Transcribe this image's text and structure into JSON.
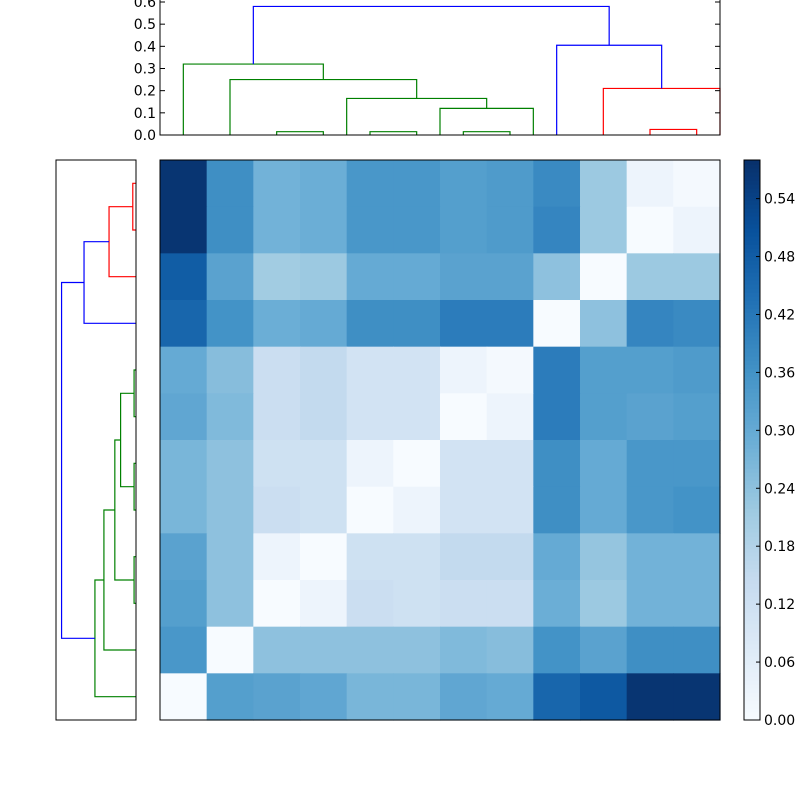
{
  "chart_data": {
    "type": "heatmap",
    "title": "",
    "xlabel": "",
    "ylabel": "",
    "colormap": "Blues",
    "matrix": [
      [
        0.57,
        0.37,
        0.28,
        0.29,
        0.35,
        0.35,
        0.33,
        0.34,
        0.38,
        0.22,
        0.03,
        0.01
      ],
      [
        0.57,
        0.37,
        0.28,
        0.29,
        0.35,
        0.35,
        0.33,
        0.34,
        0.39,
        0.22,
        0.0,
        0.03
      ],
      [
        0.48,
        0.32,
        0.21,
        0.22,
        0.3,
        0.3,
        0.32,
        0.32,
        0.24,
        0.0,
        0.22,
        0.22
      ],
      [
        0.46,
        0.36,
        0.29,
        0.3,
        0.37,
        0.37,
        0.41,
        0.41,
        0.0,
        0.24,
        0.39,
        0.38
      ],
      [
        0.3,
        0.25,
        0.13,
        0.15,
        0.11,
        0.11,
        0.03,
        0.01,
        0.41,
        0.33,
        0.33,
        0.34
      ],
      [
        0.31,
        0.26,
        0.13,
        0.15,
        0.11,
        0.11,
        0.0,
        0.03,
        0.41,
        0.33,
        0.32,
        0.33
      ],
      [
        0.27,
        0.24,
        0.12,
        0.12,
        0.03,
        0.0,
        0.11,
        0.11,
        0.37,
        0.3,
        0.35,
        0.35
      ],
      [
        0.27,
        0.24,
        0.13,
        0.12,
        0.0,
        0.03,
        0.11,
        0.11,
        0.37,
        0.3,
        0.35,
        0.36
      ],
      [
        0.32,
        0.24,
        0.03,
        0.0,
        0.12,
        0.12,
        0.15,
        0.15,
        0.3,
        0.23,
        0.28,
        0.28
      ],
      [
        0.33,
        0.24,
        0.0,
        0.03,
        0.13,
        0.12,
        0.13,
        0.13,
        0.29,
        0.22,
        0.28,
        0.28
      ],
      [
        0.35,
        0.0,
        0.24,
        0.24,
        0.24,
        0.24,
        0.26,
        0.25,
        0.36,
        0.32,
        0.37,
        0.37
      ],
      [
        0.0,
        0.33,
        0.32,
        0.31,
        0.27,
        0.27,
        0.31,
        0.3,
        0.46,
        0.49,
        0.57,
        0.57
      ]
    ],
    "clim": [
      0.0,
      0.58
    ],
    "colorbar": {
      "ticks": [
        0.0,
        0.06,
        0.12,
        0.18,
        0.24,
        0.3,
        0.36,
        0.42,
        0.48,
        0.54
      ],
      "tick_labels": [
        "0.00",
        "0.06",
        "0.12",
        "0.18",
        "0.24",
        "0.30",
        "0.36",
        "0.42",
        "0.48",
        "0.54"
      ]
    },
    "top_dendrogram": {
      "ylim": [
        0.0,
        0.6
      ],
      "yticks": [
        0.0,
        0.1,
        0.2,
        0.3,
        0.4,
        0.5,
        0.6
      ],
      "ytick_labels": [
        "0.0",
        "0.1",
        "0.2",
        "0.3",
        "0.4",
        "0.5",
        "0.6"
      ],
      "leaf_count": 12,
      "links": [
        {
          "left": 2,
          "right": 3,
          "height": 0.015,
          "color": "#008000"
        },
        {
          "left": 4,
          "right": 5,
          "height": 0.015,
          "color": "#008000"
        },
        {
          "left": 6,
          "right": 7,
          "height": 0.015,
          "color": "#008000"
        },
        {
          "left": 10,
          "right": 11,
          "height": 0.025,
          "color": "#ff0000"
        },
        {
          "left": 5.5,
          "right": 7.5,
          "height": 0.12,
          "color": "#008000"
        },
        {
          "left": 3.5,
          "right": 6.5,
          "height": 0.165,
          "color": "#008000"
        },
        {
          "left": 9,
          "right": 11.5,
          "height": 0.21,
          "color": "#ff0000"
        },
        {
          "left": 1,
          "right": 5,
          "height": 0.25,
          "color": "#008000"
        },
        {
          "left": 0,
          "right": 3,
          "height": 0.32,
          "color": "#008000"
        },
        {
          "left": 8,
          "right": 10.25,
          "height": 0.405,
          "color": "#0000ff"
        },
        {
          "left": 1.5,
          "right": 9.125,
          "height": 0.58,
          "color": "#0000ff"
        }
      ]
    },
    "left_dendrogram": {
      "leaf_count": 12,
      "xlim": [
        0.0,
        0.6
      ],
      "links": [
        {
          "a": 0,
          "b": 1,
          "height": 0.025,
          "color": "#ff0000"
        },
        {
          "a": 0.5,
          "b": 2,
          "height": 0.21,
          "color": "#ff0000"
        },
        {
          "a": 1.25,
          "b": 3,
          "height": 0.405,
          "color": "#0000ff"
        },
        {
          "a": 4,
          "b": 5,
          "height": 0.015,
          "color": "#008000"
        },
        {
          "a": 6,
          "b": 7,
          "height": 0.015,
          "color": "#008000"
        },
        {
          "a": 8,
          "b": 9,
          "height": 0.015,
          "color": "#008000"
        },
        {
          "a": 4.5,
          "b": 6.5,
          "height": 0.12,
          "color": "#008000"
        },
        {
          "a": 5.5,
          "b": 8.5,
          "height": 0.165,
          "color": "#008000"
        },
        {
          "a": 7,
          "b": 10,
          "height": 0.25,
          "color": "#008000"
        },
        {
          "a": 8.5,
          "b": 11,
          "height": 0.32,
          "color": "#008000"
        },
        {
          "a": 2.125,
          "b": 9.75,
          "height": 0.58,
          "color": "#0000ff"
        }
      ]
    }
  }
}
